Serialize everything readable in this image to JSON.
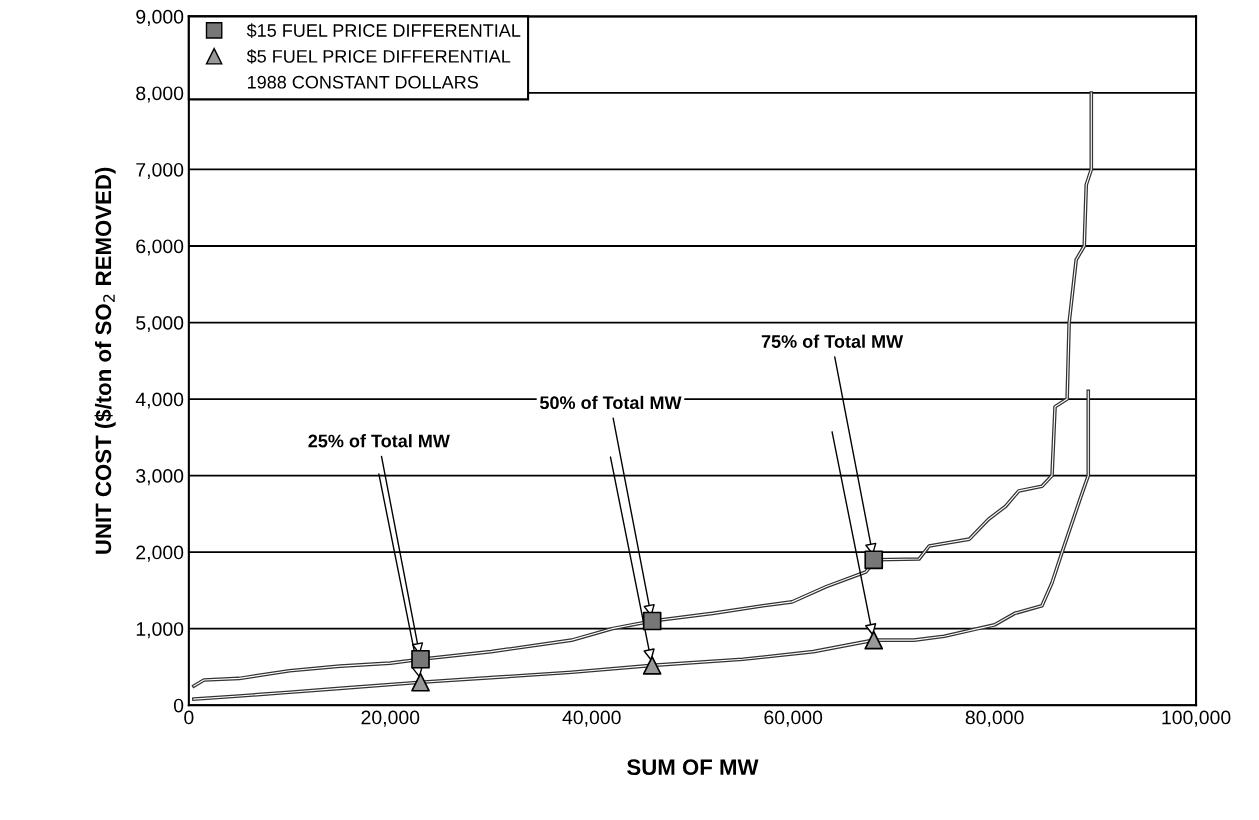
{
  "chart_data": {
    "type": "line",
    "xlabel": "SUM OF MW",
    "ylabel": "UNIT COST ($/ton of SO$_{2}$ REMOVED)",
    "xlim": [
      0,
      100000
    ],
    "ylim": [
      0,
      9000
    ],
    "xticks": [
      0,
      {
        "value": 20000,
        "label": "20,000"
      },
      {
        "value": 40000,
        "label": "40,000"
      },
      {
        "value": 60000,
        "label": "60,000"
      },
      {
        "value": 80000,
        "label": "80,000"
      },
      {
        "value": 100000,
        "label": "100,000"
      }
    ],
    "yticks": [
      0,
      {
        "value": 1000,
        "label": "1,000"
      },
      {
        "value": 2000,
        "label": "2,000"
      },
      {
        "value": 3000,
        "label": "3,000"
      },
      {
        "value": 4000,
        "label": "4,000"
      },
      {
        "value": 5000,
        "label": "5,000"
      },
      {
        "value": 6000,
        "label": "6,000"
      },
      {
        "value": 7000,
        "label": "7,000"
      },
      {
        "value": 8000,
        "label": "8,000"
      },
      {
        "value": 9000,
        "label": "9,000"
      }
    ],
    "grid": "y",
    "legend": "top left",
    "series": [
      {
        "color": "#333333",
        "x": [
          500,
          1500,
          5000,
          10000,
          15000,
          20000,
          23000,
          30000,
          38000,
          42000,
          46000,
          52000,
          57000,
          59900,
          63300,
          67200,
          68200,
          72500,
          73500,
          77500,
          79400,
          81100,
          82400,
          84700,
          85700,
          86000,
          87200,
          87400,
          88100,
          88900,
          89100,
          89600,
          89600
        ],
        "values": [
          250,
          330,
          350,
          450,
          510,
          550,
          600,
          700,
          850,
          1000,
          1100,
          1200,
          1300,
          1350,
          1550,
          1740,
          1900,
          1910,
          2080,
          2170,
          2430,
          2600,
          2800,
          2860,
          3000,
          3900,
          4000,
          5000,
          5820,
          6000,
          6800,
          7000,
          8000
        ]
      },
      {
        "color": "#333333",
        "x": [
          500,
          5000,
          10000,
          15000,
          23000,
          30000,
          38000,
          46000,
          55000,
          62000,
          68000,
          72000,
          75000,
          80000,
          82000,
          84700,
          85700,
          86700,
          88500,
          89300,
          89300
        ],
        "values": [
          80,
          120,
          170,
          220,
          300,
          360,
          430,
          520,
          600,
          700,
          850,
          850,
          900,
          1050,
          1200,
          1300,
          1600,
          2000,
          2700,
          3000,
          4100
        ]
      },
      {
        "type": "scatter",
        "name": "$15 FUEL PRICE DIFFERENTIAL",
        "color": "#777777",
        "marker": "square",
        "x": [
          23000,
          46000,
          68000
        ],
        "values": [
          600,
          1100,
          1900
        ]
      },
      {
        "type": "scatter",
        "name": "$5 FUEL PRICE DIFFERENTIAL",
        "color": "#999999",
        "marker": "triangle",
        "x": [
          23000,
          46000,
          68000
        ],
        "values": [
          300,
          520,
          850
        ]
      }
    ],
    "annotations": [
      {
        "text": "25% of Total MW",
        "x": 23000,
        "y": 600
      },
      {
        "text": "50% of Total MW",
        "x": 46000,
        "y": 1100
      },
      {
        "text": "75% of Total MW",
        "x": 68000,
        "y": 1900
      },
      "1988 CONSTANT DOLLARS"
    ]
  }
}
